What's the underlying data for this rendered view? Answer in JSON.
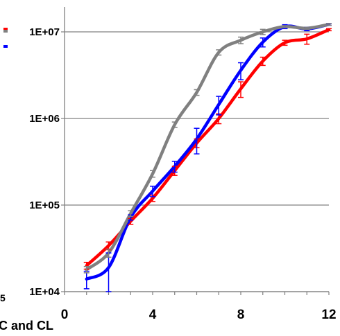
{
  "chart_data": {
    "type": "line",
    "title": "",
    "xlabel": "",
    "ylabel": "",
    "yscale": "log",
    "xlim": [
      0,
      12
    ],
    "ylim": [
      10000,
      10000000
    ],
    "grid": "horizontal major gridlines",
    "x_ticks": [
      "0",
      "4",
      "8",
      "12"
    ],
    "y_ticks": [
      "1E+04",
      "1E+05",
      "1E+06",
      "1E+07"
    ],
    "left_edge_fragments": [
      "5"
    ],
    "bottom_caption_fragment": "C and CL",
    "series": [
      {
        "color": "#ff0000",
        "points": [
          {
            "x": 1,
            "y": 20000,
            "err": 1800
          },
          {
            "x": 2,
            "y": 34000,
            "err": 3500
          },
          {
            "x": 3,
            "y": 65000,
            "err": 5000
          },
          {
            "x": 4,
            "y": 120000,
            "err": 10000
          },
          {
            "x": 5,
            "y": 250000,
            "err": 30000
          },
          {
            "x": 6,
            "y": 520000,
            "err": 60000
          },
          {
            "x": 7,
            "y": 1000000,
            "err": 130000
          },
          {
            "x": 8,
            "y": 2200000,
            "err": 450000
          },
          {
            "x": 9,
            "y": 4600000,
            "err": 500000
          },
          {
            "x": 10,
            "y": 7500000,
            "err": 500000
          },
          {
            "x": 11,
            "y": 8300000,
            "err": 1100000
          },
          {
            "x": 12,
            "y": 10600000,
            "err": 300000
          }
        ]
      },
      {
        "color": "#0000ff",
        "points": [
          {
            "x": 1,
            "y": 14000,
            "err": 3200
          },
          {
            "x": 2,
            "y": 19000,
            "err": 9000
          },
          {
            "x": 3,
            "y": 72000,
            "err": 5000
          },
          {
            "x": 4,
            "y": 145000,
            "err": 20000
          },
          {
            "x": 5,
            "y": 280000,
            "err": 40000
          },
          {
            "x": 6,
            "y": 580000,
            "err": 190000
          },
          {
            "x": 7,
            "y": 1450000,
            "err": 350000
          },
          {
            "x": 8,
            "y": 3600000,
            "err": 800000
          },
          {
            "x": 9,
            "y": 7600000,
            "err": 900000
          },
          {
            "x": 10,
            "y": 11500000,
            "err": 600000
          },
          {
            "x": 11,
            "y": 10800000,
            "err": 500000
          },
          {
            "x": 12,
            "y": 12200000,
            "err": 300000
          }
        ]
      },
      {
        "color": "#808080",
        "points": [
          {
            "x": 1,
            "y": 18000,
            "err": 1500
          },
          {
            "x": 2,
            "y": 28000,
            "err": 3000
          },
          {
            "x": 3,
            "y": 80000,
            "err": 6000
          },
          {
            "x": 4,
            "y": 230000,
            "err": 20000
          },
          {
            "x": 5,
            "y": 850000,
            "err": 60000
          },
          {
            "x": 6,
            "y": 2000000,
            "err": 150000
          },
          {
            "x": 7,
            "y": 5800000,
            "err": 400000
          },
          {
            "x": 8,
            "y": 8000000,
            "err": 700000
          },
          {
            "x": 9,
            "y": 10000000,
            "err": 700000
          },
          {
            "x": 10,
            "y": 11500000,
            "err": 300000
          },
          {
            "x": 11,
            "y": 11000000,
            "err": 300000
          },
          {
            "x": 12,
            "y": 12200000,
            "err": 300000
          }
        ]
      }
    ],
    "legend_markers": [
      {
        "color": "#ff0000"
      },
      {
        "color": "#808080"
      },
      {
        "color": "#0000ff"
      }
    ]
  }
}
